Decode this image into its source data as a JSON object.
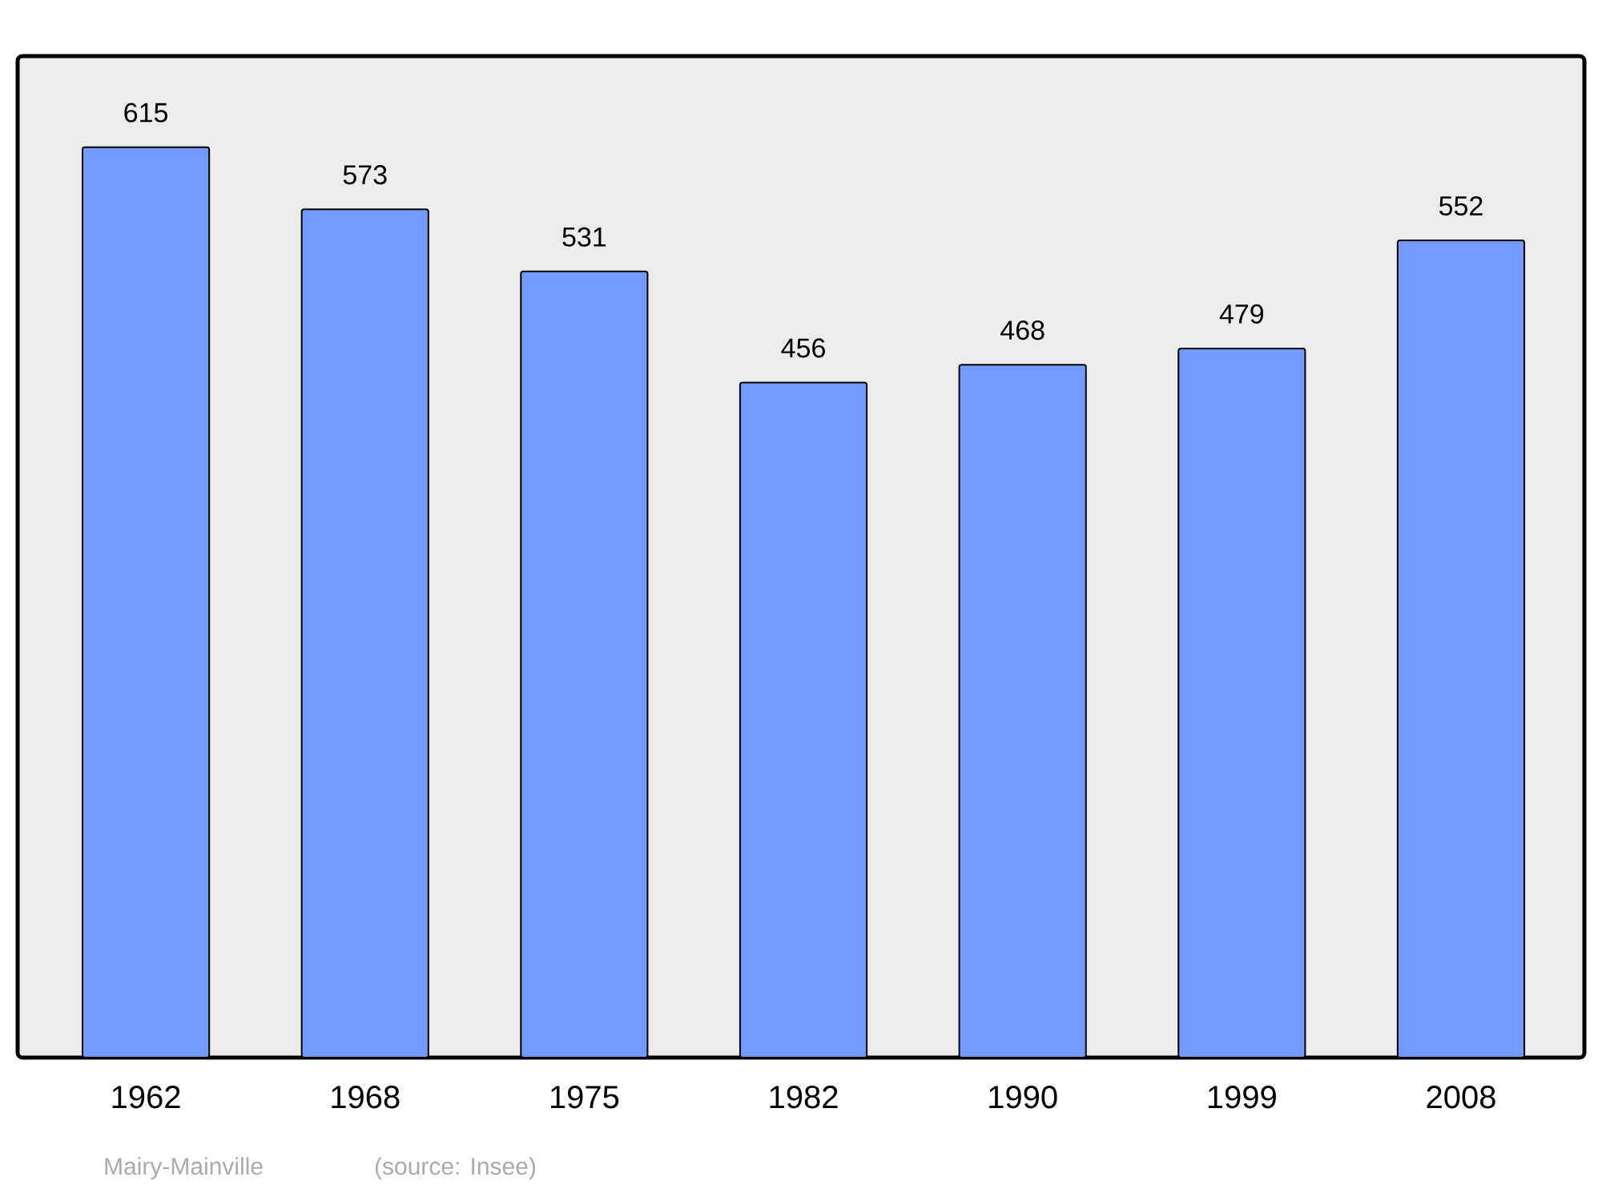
{
  "chart_data": {
    "type": "bar",
    "categories": [
      "1962",
      "1968",
      "1975",
      "1982",
      "1990",
      "1999",
      "2008"
    ],
    "values": [
      615,
      573,
      531,
      456,
      468,
      479,
      552
    ],
    "color": "#7499ff",
    "data_labels": true,
    "annotations": [
      "Mairy-Mainville",
      "(source: Insee)"
    ]
  }
}
